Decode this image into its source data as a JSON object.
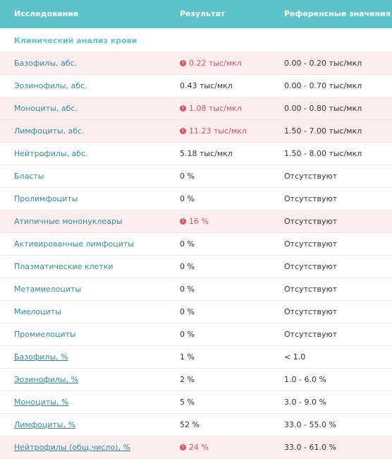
{
  "header": {
    "col_test": "Исследование",
    "col_result": "Результат",
    "col_ref": "Референсные значения"
  },
  "section_title": "Клинический анализ крови",
  "alert_glyph": "!",
  "rows": [
    {
      "name": "Базофилы, абс.",
      "result": "0.22 тыс/мкл",
      "ref": "0.00 - 0.20 тыс/мкл"
    },
    {
      "name": "Эозинофилы, абс.",
      "result": "0.43 тыс/мкл",
      "ref": "0.00 - 0.70 тыс/мкл"
    },
    {
      "name": "Моноциты, абс.",
      "result": "1.08 тыс/мкл",
      "ref": "0.00 - 0.80 тыс/мкл"
    },
    {
      "name": "Лимфоциты, абс.",
      "result": "11.23 тыс/мкл",
      "ref": "1.50 - 7.00 тыс/мкл"
    },
    {
      "name": "Нейтрофилы, абс.",
      "result": "5.18 тыс/мкл",
      "ref": "1.50 - 8.00 тыс/мкл"
    },
    {
      "name": "Бласты",
      "result": "0 %",
      "ref": "Отсутствуют"
    },
    {
      "name": "Пролимфоциты",
      "result": "0 %",
      "ref": "Отсутствуют"
    },
    {
      "name": "Атипичные мононуклеары",
      "result": "16 %",
      "ref": "Отсутствуют"
    },
    {
      "name": "Активированные лимфоциты",
      "result": "0 %",
      "ref": "Отсутствуют"
    },
    {
      "name": "Плазматические клетки",
      "result": "0 %",
      "ref": "Отсутствуют"
    },
    {
      "name": "Метамиелоциты",
      "result": "0 %",
      "ref": "Отсутствуют"
    },
    {
      "name": "Миелоциты",
      "result": "0 %",
      "ref": "Отсутствуют"
    },
    {
      "name": "Промиелоциты",
      "result": "0 %",
      "ref": "Отсутствуют"
    },
    {
      "name": "Базофилы, %",
      "result": "1 %",
      "ref": "< 1.0"
    },
    {
      "name": "Эозинофилы, %",
      "result": "2 %",
      "ref": "1.0 - 6.0 %"
    },
    {
      "name": "Моноциты, %",
      "result": "5 %",
      "ref": "3.0 - 9.0 %"
    },
    {
      "name": "Лимфоциты, %",
      "result": "52 %",
      "ref": "33.0 - 55.0 %"
    },
    {
      "name": "Нейтрофилы (общ.число), %",
      "result": "24 %",
      "ref": "33.0 - 61.0 %"
    }
  ]
}
